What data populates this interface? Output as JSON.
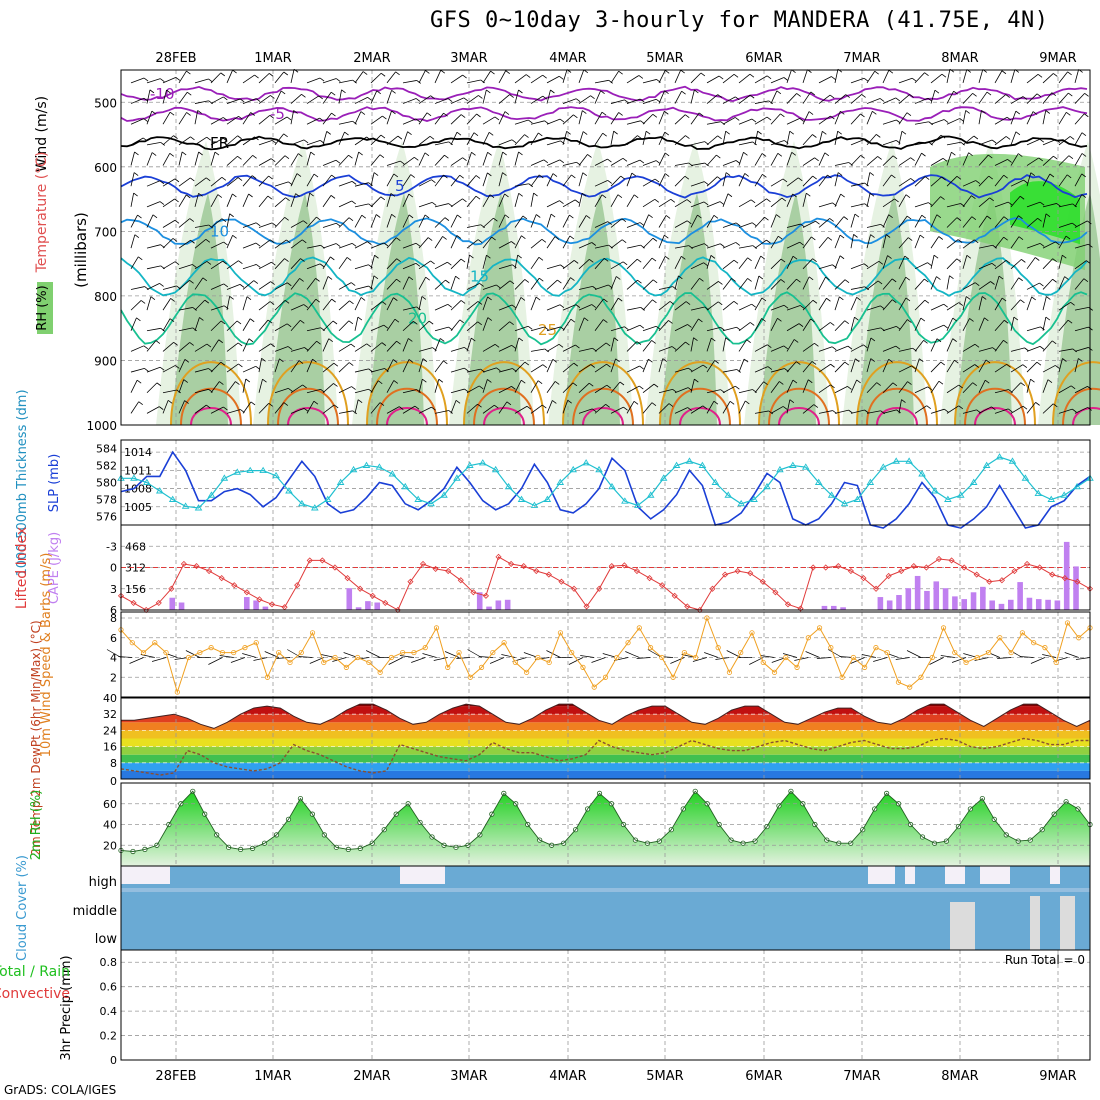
{
  "title": "GFS 0~10day 3-hourly for MANDERA (41.75E, 4N)",
  "credit": "GrADS: COLA/IGES",
  "dates": [
    "28FEB",
    "1MAR",
    "2MAR",
    "3MAR",
    "4MAR",
    "5MAR",
    "6MAR",
    "7MAR",
    "8MAR",
    "9MAR"
  ],
  "chart_data": [
    {
      "type": "heatmap",
      "name": "pressure-time cross section",
      "ylabel": "(millibars)",
      "side_labels": {
        "wind": "Wind (m/s)",
        "temp": "Temperature (°C)",
        "rh": "RH (%)"
      },
      "y_ticks": [
        500,
        600,
        700,
        800,
        900,
        1000
      ],
      "contour_labels": [
        {
          "text": "-10",
          "color": "#9a1fb8"
        },
        {
          "text": "-5",
          "color": "#9a1fb8"
        },
        {
          "text": "FR",
          "color": "#000000"
        },
        {
          "text": "5",
          "color": "#1a3fd6"
        },
        {
          "text": "10",
          "color": "#1c8fe0"
        },
        {
          "text": "15",
          "color": "#14b5c4"
        },
        {
          "text": "20",
          "color": "#18c090"
        },
        {
          "text": "25",
          "color": "#e0a020"
        }
      ],
      "colors": {
        "rh_light": "#e6f2e2",
        "rh_mid": "#a9cfa3",
        "rh_dark": "#7fd070",
        "rh_sat": "#20e020"
      }
    },
    {
      "type": "line",
      "name": "thickness and slp",
      "ylabel_left": "1000-500mb Thickness (dm)",
      "ylabel_right": "SLP (mb)",
      "thickness_ticks": [
        576,
        578,
        580,
        582,
        584
      ],
      "slp_ticks": [
        1005,
        1008,
        1011,
        1014
      ],
      "series": [
        {
          "name": "SLP",
          "color": "#1a3fd6",
          "values": [
            1007.5,
            1008,
            1010,
            1010,
            1014,
            1011,
            1006,
            1006,
            1007.5,
            1008,
            1007,
            1005,
            1006.5,
            1009.5,
            1012.5,
            1010,
            1005.5,
            1004,
            1004.5,
            1006.5,
            1009,
            1008.5,
            1005.5,
            1004.5,
            1006,
            1008,
            1011.5,
            1009,
            1006,
            1004.5,
            1005.5,
            1008,
            1012,
            1009,
            1004.5,
            1004,
            1005.5,
            1008,
            1013,
            1011,
            1005,
            1003,
            1004.5,
            1007,
            1011,
            1008.5,
            1002,
            1002.5,
            1004,
            1007,
            1010.5,
            1009,
            1003,
            1002,
            1003,
            1005.5,
            1009,
            1008.5,
            1002,
            1001.5,
            1003,
            1005.5,
            1009,
            1006.5,
            1002,
            1001.5,
            1003,
            1005,
            1008.5,
            1005,
            1001.5,
            1002,
            1005,
            1006,
            1008.5,
            1010
          ]
        },
        {
          "name": "Thickness",
          "color": "#20c0d0",
          "values": [
            580.5,
            580.5,
            580,
            579,
            578,
            577.2,
            577,
            578.5,
            580.5,
            581.2,
            581.4,
            581.4,
            580.8,
            579,
            577.5,
            577,
            578,
            580,
            581.5,
            582,
            581.8,
            581,
            579.5,
            578,
            577.5,
            578.5,
            580.5,
            582,
            582.3,
            581.5,
            579.5,
            578,
            577.3,
            578,
            580,
            581.5,
            582.3,
            581.5,
            579.5,
            577.8,
            577.3,
            578.5,
            580.5,
            582,
            582.5,
            582,
            580,
            578.5,
            577.5,
            578,
            579.5,
            581.5,
            582,
            581.8,
            580,
            578.5,
            577.5,
            578,
            580,
            581.8,
            582.5,
            582.5,
            581,
            579,
            578,
            578.5,
            580,
            582,
            583,
            582.5,
            580.5,
            578.7,
            578,
            578.5,
            579.5,
            580.5
          ]
        }
      ]
    },
    {
      "type": "bar",
      "name": "lifted index and cape",
      "ylabel_left": "Lifted Index",
      "ylabel_right": "CAPE (J/kg)",
      "li_ticks": [
        -3,
        0,
        3,
        6
      ],
      "cape_ticks": [
        156,
        312,
        468
      ],
      "ylim_li": [
        -6,
        6
      ],
      "ylim_cape": [
        0,
        624
      ],
      "series": [
        {
          "name": "Lifted Index",
          "color": "#e03a3a",
          "values": [
            4,
            5,
            6,
            5,
            3,
            -0.5,
            -0.2,
            0.5,
            1.5,
            2.5,
            3.5,
            4.5,
            5.2,
            5.6,
            2.5,
            -1,
            -1,
            0,
            1.5,
            3,
            4,
            5,
            6,
            2,
            -0.5,
            0.2,
            0.5,
            1.8,
            3.5,
            4,
            -1.5,
            -0.5,
            -0.2,
            0.5,
            1,
            2,
            3,
            5.5,
            3,
            -0.2,
            -0.3,
            0.5,
            1.5,
            2.5,
            4,
            5.5,
            6,
            3,
            1,
            0.5,
            0.8,
            2,
            3.5,
            5.2,
            5.8,
            0,
            0,
            -0.2,
            0.5,
            1.5,
            3,
            1.2,
            0.5,
            -0.2,
            0,
            -1.2,
            -1,
            0,
            1,
            2,
            1.8,
            0.5,
            -0.5,
            0,
            1,
            1.5,
            2,
            3
          ]
        },
        {
          "name": "CAPE",
          "color": "#c080f0",
          "values": [
            0,
            0,
            0,
            0,
            0,
            90,
            55,
            0,
            0,
            0,
            0,
            0,
            0,
            95,
            70,
            25,
            0,
            0,
            0,
            0,
            0,
            0,
            0,
            0,
            160,
            20,
            65,
            55,
            0,
            0,
            0,
            0,
            0,
            0,
            0,
            0,
            0,
            0,
            130,
            25,
            70,
            75,
            0,
            0,
            0,
            0,
            0,
            0,
            0,
            0,
            0,
            0,
            0,
            0,
            0,
            0,
            0,
            0,
            0,
            0,
            0,
            0,
            0,
            0,
            0,
            0,
            0,
            0,
            0,
            0,
            0,
            0,
            0,
            0,
            0,
            30,
            30,
            20,
            0,
            0,
            0,
            95,
            70,
            110,
            160,
            250,
            140,
            210,
            160,
            100,
            80,
            130,
            170,
            70,
            45,
            75,
            205,
            90,
            80,
            75,
            70,
            500,
            320,
            0
          ]
        }
      ]
    },
    {
      "type": "line",
      "name": "10m wind",
      "ylabel": "10m Wind Speed & Barbs (m/s)",
      "y_ticks": [
        2,
        4,
        6,
        8
      ],
      "ylim": [
        0,
        8
      ],
      "series": [
        {
          "name": "Speed",
          "color": "#f0a020",
          "values": [
            6.8,
            5.5,
            4.5,
            5.5,
            4.5,
            0.5,
            4,
            4.5,
            5,
            4.5,
            4.5,
            5,
            5.5,
            2,
            4.5,
            3.5,
            4.5,
            6.5,
            3.5,
            4,
            3,
            4,
            3.5,
            2.5,
            4,
            4.5,
            4.5,
            5,
            7,
            3,
            4.5,
            2,
            3,
            4.5,
            5.5,
            3.5,
            2.5,
            4,
            3.5,
            6.5,
            4.5,
            3,
            1,
            2,
            4,
            5.5,
            7,
            5,
            4,
            2,
            4.5,
            4,
            8,
            5,
            2.5,
            4.5,
            6.5,
            3.5,
            2.5,
            4,
            3,
            6,
            7,
            5,
            2,
            4,
            3,
            5,
            4.5,
            1.5,
            1,
            2,
            4,
            7,
            4.5,
            3.5,
            4,
            4.5,
            6,
            4.5,
            6.5,
            5.5,
            5,
            3.5,
            7.5,
            6,
            7
          ]
        }
      ]
    },
    {
      "type": "area",
      "name": "2m temp",
      "ylabel": "2m Temp 2m DewPt (6hr Min/Max) (°C)",
      "y_ticks": [
        8,
        16,
        24,
        32,
        40
      ],
      "ylim": [
        0,
        40
      ],
      "bands": [
        "#2878e0",
        "#30a0f0",
        "#40c050",
        "#90d040",
        "#e8e020",
        "#f0c020",
        "#f08020",
        "#e04020",
        "#c01010",
        "#800000"
      ],
      "series": [
        {
          "name": "Temperature",
          "values": [
            29,
            29,
            30,
            31,
            32,
            30,
            27,
            25,
            28,
            32,
            35,
            36,
            35,
            31,
            28,
            27,
            30,
            34,
            37,
            37,
            34,
            30,
            27,
            28,
            32,
            35,
            37,
            36,
            32,
            28,
            27,
            30,
            34,
            37,
            37,
            33,
            29,
            27,
            31,
            34,
            36,
            36,
            32,
            28,
            27,
            30,
            34,
            36,
            36,
            32,
            28,
            27,
            30,
            33,
            35,
            35,
            31,
            28,
            27,
            30,
            34,
            37,
            37,
            33,
            29,
            26,
            30,
            34,
            37,
            37,
            33,
            29,
            26,
            29
          ]
        },
        {
          "name": "Dew Point",
          "color": "#8a5030",
          "values": [
            5,
            4,
            3,
            2,
            3,
            14,
            12,
            8,
            6,
            5,
            4,
            5,
            8,
            17,
            14,
            12,
            9,
            6,
            4,
            3,
            4,
            17,
            15,
            13,
            11,
            10,
            9,
            12,
            18,
            15,
            13,
            13,
            11,
            9,
            10,
            12,
            19,
            16,
            14,
            13,
            12,
            13,
            16,
            19,
            17,
            15,
            14,
            14,
            16,
            18,
            19,
            17,
            15,
            14,
            16,
            18,
            19,
            17,
            15,
            15,
            16,
            19,
            20,
            19,
            16,
            15,
            16,
            18,
            20,
            19,
            17,
            17,
            19,
            19
          ]
        }
      ]
    },
    {
      "type": "area",
      "name": "2m RH",
      "ylabel": "2m RH (%)",
      "y_ticks": [
        20,
        40,
        60
      ],
      "ylim": [
        0,
        80
      ],
      "series": [
        {
          "name": "RH",
          "color": "#20c020",
          "values": [
            15,
            14,
            16,
            20,
            40,
            60,
            72,
            50,
            30,
            18,
            16,
            17,
            22,
            30,
            45,
            65,
            50,
            30,
            18,
            16,
            17,
            22,
            35,
            50,
            60,
            42,
            28,
            20,
            18,
            20,
            30,
            50,
            70,
            60,
            40,
            25,
            20,
            22,
            35,
            55,
            70,
            60,
            40,
            25,
            22,
            24,
            35,
            55,
            72,
            60,
            40,
            25,
            22,
            24,
            38,
            58,
            72,
            60,
            40,
            25,
            22,
            22,
            35,
            55,
            70,
            60,
            40,
            28,
            22,
            24,
            38,
            55,
            65,
            45,
            30,
            24,
            25,
            35,
            50,
            62,
            55,
            40
          ]
        }
      ]
    },
    {
      "type": "heatmap",
      "name": "cloud cover",
      "ylabel": "Cloud Cover (%)",
      "levels": [
        "high",
        "middle",
        "low"
      ],
      "color": "#6aaad4"
    },
    {
      "type": "bar",
      "name": "3hr precip",
      "ylabel": "3hr Precip (mm)",
      "legend": [
        "Total / Rain",
        "Convective"
      ],
      "legend_colors": [
        "#20c020",
        "#e03a3a"
      ],
      "y_ticks": [
        0,
        0.2,
        0.4,
        0.6,
        0.8
      ],
      "ylim": [
        0,
        0.9
      ],
      "run_total": "Run Total = 0"
    }
  ]
}
